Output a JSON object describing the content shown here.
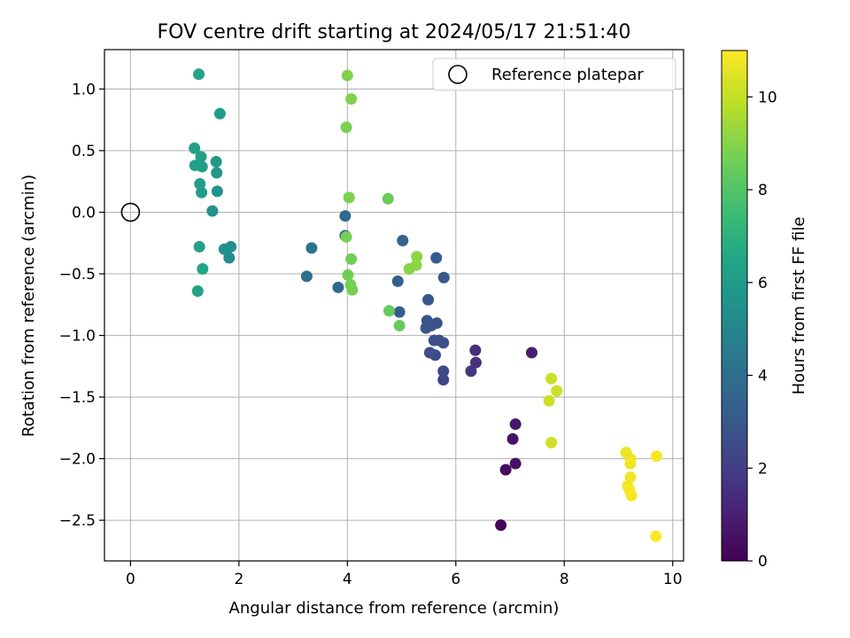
{
  "chart_data": {
    "type": "scatter",
    "title": "FOV centre drift starting at 2024/05/17 21:51:40",
    "xlabel": "Angular distance from reference (arcmin)",
    "ylabel": "Rotation from reference (arcmin)",
    "xlim": [
      -0.48,
      10.2
    ],
    "ylim": [
      -2.83,
      1.32
    ],
    "xticks": [
      0,
      2,
      4,
      6,
      8,
      10
    ],
    "yticks": [
      -2.5,
      -2.0,
      -1.5,
      -1.0,
      -0.5,
      0.0,
      0.5,
      1.0
    ],
    "grid": true,
    "legend": {
      "position": "top-right",
      "entries": [
        "Reference platepar"
      ]
    },
    "reference_point": {
      "x": 0,
      "y": 0,
      "label": "Reference platepar"
    },
    "colorbar": {
      "label": "Hours from first FF file",
      "colormap": "viridis",
      "range": [
        0,
        11
      ],
      "ticks": [
        0,
        2,
        4,
        6,
        8,
        10
      ]
    },
    "points": [
      {
        "x": 6.83,
        "y": -2.54,
        "c": 0.2
      },
      {
        "x": 6.92,
        "y": -2.09,
        "c": 0.4
      },
      {
        "x": 7.1,
        "y": -2.04,
        "c": 0.5
      },
      {
        "x": 7.05,
        "y": -1.84,
        "c": 0.6
      },
      {
        "x": 7.1,
        "y": -1.72,
        "c": 0.7
      },
      {
        "x": 7.4,
        "y": -1.14,
        "c": 0.9
      },
      {
        "x": 6.36,
        "y": -1.12,
        "c": 1.5
      },
      {
        "x": 6.37,
        "y": -1.22,
        "c": 1.6
      },
      {
        "x": 6.28,
        "y": -1.29,
        "c": 1.7
      },
      {
        "x": 5.77,
        "y": -1.36,
        "c": 2.3
      },
      {
        "x": 5.77,
        "y": -1.29,
        "c": 2.4
      },
      {
        "x": 5.62,
        "y": -1.16,
        "c": 2.5
      },
      {
        "x": 5.52,
        "y": -1.14,
        "c": 2.6
      },
      {
        "x": 5.77,
        "y": -1.06,
        "c": 2.6
      },
      {
        "x": 5.6,
        "y": -1.04,
        "c": 2.7
      },
      {
        "x": 5.69,
        "y": -1.04,
        "c": 2.7
      },
      {
        "x": 5.65,
        "y": -0.9,
        "c": 2.8
      },
      {
        "x": 5.55,
        "y": -0.92,
        "c": 2.8
      },
      {
        "x": 5.47,
        "y": -0.88,
        "c": 2.9
      },
      {
        "x": 5.45,
        "y": -0.94,
        "c": 2.9
      },
      {
        "x": 5.49,
        "y": -0.71,
        "c": 3.0
      },
      {
        "x": 5.78,
        "y": -0.53,
        "c": 3.0
      },
      {
        "x": 5.64,
        "y": -0.37,
        "c": 3.1
      },
      {
        "x": 4.96,
        "y": -0.81,
        "c": 3.2
      },
      {
        "x": 4.93,
        "y": -0.56,
        "c": 3.3
      },
      {
        "x": 5.02,
        "y": -0.23,
        "c": 3.4
      },
      {
        "x": 3.96,
        "y": -0.19,
        "c": 3.6
      },
      {
        "x": 3.96,
        "y": -0.03,
        "c": 3.7
      },
      {
        "x": 3.83,
        "y": -0.61,
        "c": 3.8
      },
      {
        "x": 3.25,
        "y": -0.52,
        "c": 4.0
      },
      {
        "x": 3.34,
        "y": -0.29,
        "c": 4.1
      },
      {
        "x": 1.82,
        "y": -0.37,
        "c": 5.3
      },
      {
        "x": 1.85,
        "y": -0.28,
        "c": 5.4
      },
      {
        "x": 1.73,
        "y": -0.3,
        "c": 5.5
      },
      {
        "x": 1.51,
        "y": 0.01,
        "c": 5.6
      },
      {
        "x": 1.6,
        "y": 0.17,
        "c": 5.7
      },
      {
        "x": 1.59,
        "y": 0.32,
        "c": 5.8
      },
      {
        "x": 1.58,
        "y": 0.41,
        "c": 5.9
      },
      {
        "x": 1.65,
        "y": 0.8,
        "c": 6.0
      },
      {
        "x": 1.28,
        "y": 0.23,
        "c": 6.1
      },
      {
        "x": 1.31,
        "y": 0.16,
        "c": 6.1
      },
      {
        "x": 1.32,
        "y": 0.37,
        "c": 6.1
      },
      {
        "x": 1.3,
        "y": 0.45,
        "c": 6.2
      },
      {
        "x": 1.19,
        "y": 0.38,
        "c": 6.2
      },
      {
        "x": 1.18,
        "y": 0.52,
        "c": 6.2
      },
      {
        "x": 1.26,
        "y": 1.12,
        "c": 6.3
      },
      {
        "x": 1.27,
        "y": -0.28,
        "c": 6.3
      },
      {
        "x": 1.33,
        "y": -0.46,
        "c": 6.4
      },
      {
        "x": 1.24,
        "y": -0.64,
        "c": 6.4
      },
      {
        "x": 4.77,
        "y": -0.8,
        "c": 8.4
      },
      {
        "x": 4.96,
        "y": -0.92,
        "c": 8.4
      },
      {
        "x": 4.75,
        "y": 0.11,
        "c": 8.5
      },
      {
        "x": 4.07,
        "y": -0.38,
        "c": 8.6
      },
      {
        "x": 4.01,
        "y": -0.51,
        "c": 8.6
      },
      {
        "x": 4.06,
        "y": -0.59,
        "c": 8.7
      },
      {
        "x": 4.09,
        "y": -0.63,
        "c": 8.7
      },
      {
        "x": 3.98,
        "y": -0.2,
        "c": 8.7
      },
      {
        "x": 4.03,
        "y": 0.12,
        "c": 8.8
      },
      {
        "x": 3.98,
        "y": 0.69,
        "c": 8.8
      },
      {
        "x": 4.07,
        "y": 0.92,
        "c": 8.9
      },
      {
        "x": 4.0,
        "y": 1.11,
        "c": 8.9
      },
      {
        "x": 5.14,
        "y": -0.46,
        "c": 9.0
      },
      {
        "x": 5.27,
        "y": -0.43,
        "c": 9.1
      },
      {
        "x": 5.28,
        "y": -0.36,
        "c": 9.1
      },
      {
        "x": 7.76,
        "y": -1.35,
        "c": 10.1
      },
      {
        "x": 7.86,
        "y": -1.45,
        "c": 10.1
      },
      {
        "x": 7.72,
        "y": -1.53,
        "c": 10.2
      },
      {
        "x": 7.76,
        "y": -1.87,
        "c": 10.2
      },
      {
        "x": 9.14,
        "y": -1.95,
        "c": 10.7
      },
      {
        "x": 9.22,
        "y": -2.0,
        "c": 10.7
      },
      {
        "x": 9.22,
        "y": -2.04,
        "c": 10.8
      },
      {
        "x": 9.22,
        "y": -2.15,
        "c": 10.8
      },
      {
        "x": 9.17,
        "y": -2.22,
        "c": 10.8
      },
      {
        "x": 9.2,
        "y": -2.25,
        "c": 10.9
      },
      {
        "x": 9.24,
        "y": -2.3,
        "c": 10.9
      },
      {
        "x": 9.7,
        "y": -1.98,
        "c": 10.9
      },
      {
        "x": 9.69,
        "y": -2.63,
        "c": 11.0
      }
    ]
  }
}
